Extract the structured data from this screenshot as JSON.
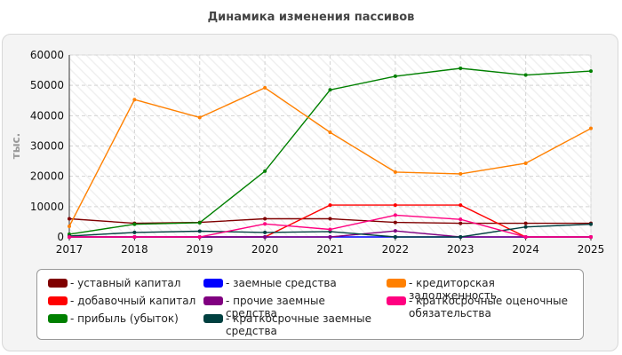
{
  "chart_data": {
    "type": "line",
    "title": "Динамика изменения пассивов",
    "ylabel": "тыс.",
    "xlabel": "",
    "x": [
      "2017",
      "2018",
      "2019",
      "2020",
      "2021",
      "2022",
      "2023",
      "2024",
      "2025"
    ],
    "ylim": [
      0,
      60000
    ],
    "yticks": [
      "0",
      "10000",
      "20000",
      "30000",
      "40000",
      "50000",
      "60000"
    ],
    "grid": true,
    "legend_position": "bottom",
    "series": [
      {
        "name": "уставный капитал",
        "color": "#800000",
        "values": [
          6000,
          4500,
          4800,
          6000,
          6000,
          4800,
          4500,
          4500,
          4500
        ]
      },
      {
        "name": "добавочный капитал",
        "color": "#ff0000",
        "values": [
          0,
          0,
          0,
          0,
          10500,
          10500,
          10500,
          0,
          0
        ]
      },
      {
        "name": "прибыль (убыток)",
        "color": "#008000",
        "values": [
          900,
          4200,
          4700,
          21700,
          48500,
          53000,
          55600,
          53400,
          54700
        ]
      },
      {
        "name": "заемные средства",
        "color": "#0000ff",
        "values": [
          0,
          0,
          0,
          0,
          0,
          0,
          0,
          0,
          0
        ]
      },
      {
        "name": "прочие заемные средства",
        "color": "#800080",
        "values": [
          0,
          0,
          0,
          0,
          0,
          2000,
          0,
          0,
          0
        ]
      },
      {
        "name": "краткосрочные заемные средства",
        "color": "#004040",
        "values": [
          300,
          1500,
          1900,
          1500,
          1800,
          0,
          0,
          3300,
          4200
        ]
      },
      {
        "name": "кредиторская задолженность",
        "color": "#ff8000",
        "values": [
          3500,
          45300,
          39400,
          49200,
          34500,
          21400,
          20800,
          24300,
          35800
        ]
      },
      {
        "name": "краткосрочные оценочные обязательства",
        "color": "#ff0080",
        "values": [
          0,
          0,
          0,
          4300,
          2500,
          7200,
          5800,
          0,
          0
        ]
      }
    ]
  }
}
